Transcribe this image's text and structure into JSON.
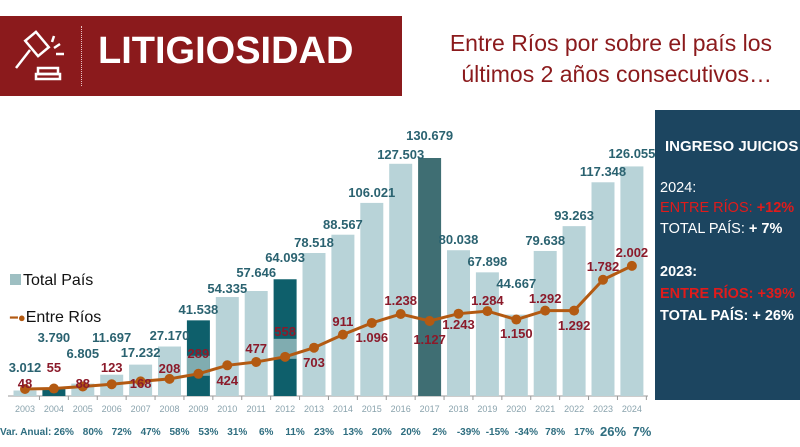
{
  "header": {
    "title": "LITIGIOSIDAD",
    "subtitle_line1": "Entre Ríos por sobre el país los",
    "subtitle_line2": "últimos 2 años consecutivos…",
    "icon": "gavel-icon"
  },
  "side_panel": {
    "title": "INGRESO JUICIOS",
    "y2024": "2024:",
    "y2024_er": "ENTRE RÍOS: ",
    "y2024_er_val": "+12%",
    "y2024_tp": "TOTAL PAÍS: ",
    "y2024_tp_val": "+ 7%",
    "y2023": "2023:",
    "y2023_er": "ENTRE RÍOS: +39%",
    "y2023_tp": "TOTAL PAÍS: + 26%"
  },
  "colors": {
    "bar": "#b8d3d8",
    "bar_highlight": "#0e5f6b",
    "bar_2017": "#3f6e73",
    "line": "#b35a12",
    "line_label": "#8b1a2a",
    "bar_label": "#2a6270",
    "banner": "#8b1a1c",
    "panel": "#1c4560"
  },
  "chart_data": {
    "type": "bar+line",
    "categories": [
      "2003",
      "2004",
      "2005",
      "2006",
      "2007",
      "2008",
      "2009",
      "2010",
      "2011",
      "2012",
      "2013",
      "2014",
      "2015",
      "2016",
      "2017",
      "2018",
      "2019",
      "2020",
      "2021",
      "2022",
      "2023",
      "2024"
    ],
    "series": [
      {
        "name": "Total País",
        "type": "bar",
        "values": [
          3012,
          3790,
          6805,
          11697,
          17232,
          27170,
          41538,
          54335,
          57646,
          64093,
          78518,
          88567,
          106021,
          127503,
          130679,
          80038,
          67898,
          44667,
          79638,
          93263,
          117348,
          126055
        ],
        "labels": [
          "3.012",
          "3.790",
          "6.805",
          "11.697",
          "17.232",
          "27.170",
          "41.538",
          "54.335",
          "57.646",
          "64.093",
          "78.518",
          "88.567",
          "106.021",
          "127.503",
          "130.679",
          "80.038",
          "67.898",
          "44.667",
          "79.638",
          "93.263",
          "117.348",
          "126.055"
        ]
      },
      {
        "name": "Entre Ríos",
        "type": "line",
        "values": [
          48,
          55,
          88,
          123,
          168,
          208,
          289,
          424,
          477,
          558,
          703,
          911,
          1096,
          1238,
          1127,
          1243,
          1284,
          1150,
          1292,
          1292,
          1782,
          2002
        ],
        "labels": [
          "48",
          "55",
          "88",
          "123",
          "168",
          "208",
          "289",
          "424",
          "477",
          "558",
          "703",
          "911",
          "1.096",
          "1.238",
          "1.127",
          "1.243",
          "1.284",
          "1.150",
          "1.292",
          "1.292",
          "1.782",
          "2.002"
        ]
      }
    ],
    "highlighted": [
      "2009",
      "2012",
      "2017"
    ],
    "var_anual_label": "Var. Anual:",
    "var_anual": [
      "26%",
      "80%",
      "72%",
      "47%",
      "58%",
      "53%",
      "31%",
      "6%",
      "11%",
      "23%",
      "13%",
      "20%",
      "20%",
      "2%",
      "-39%",
      "-15%",
      "-34%",
      "78%",
      "17%",
      "26%",
      "7%"
    ],
    "legend": [
      "Total País",
      "Entre Ríos"
    ]
  }
}
